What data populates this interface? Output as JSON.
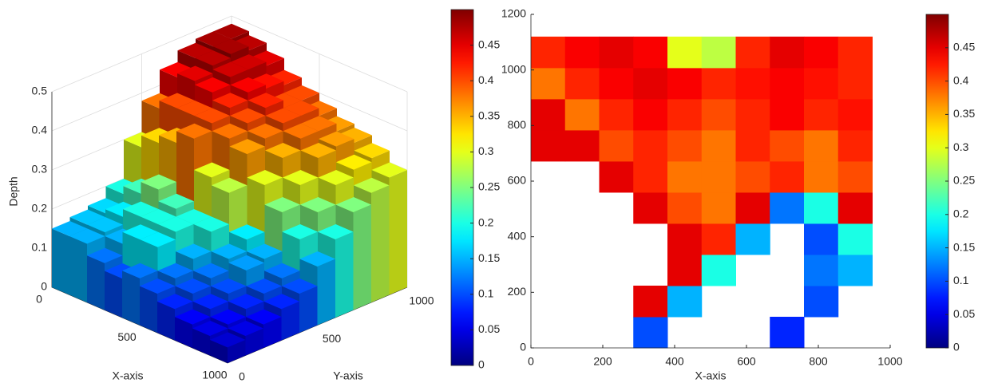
{
  "chart_data": [
    {
      "type": "surface3d",
      "xlabel": "X-axis",
      "ylabel": "Y-axis",
      "zlabel": "Depth",
      "colormap": "jet",
      "xlim": [
        0,
        1000
      ],
      "ylim": [
        0,
        1000
      ],
      "zlim": [
        0,
        0.5
      ],
      "clim": [
        0,
        0.5
      ],
      "xticks": [
        0,
        500,
        1000
      ],
      "yticks": [
        0,
        500,
        1000
      ],
      "zticks": [
        0,
        0.1,
        0.2,
        0.3,
        0.4,
        0.5
      ],
      "cticks": [
        0,
        0.05,
        0.1,
        0.15,
        0.2,
        0.25,
        0.3,
        0.35,
        0.4,
        0.45
      ],
      "grid": true,
      "xbins": [
        0,
        100,
        200,
        300,
        400,
        500,
        600,
        700,
        800,
        900,
        1000
      ],
      "ybins": [
        0,
        100,
        200,
        300,
        400,
        500,
        600,
        700,
        800,
        900,
        1000
      ],
      "z": [
        [
          0.15,
          0.16,
          0.17,
          0.2,
          0.3,
          0.38,
          0.44,
          0.47,
          0.48,
          0.48
        ],
        [
          0.15,
          0.16,
          0.18,
          0.22,
          0.33,
          0.4,
          0.45,
          0.47,
          0.48,
          0.47
        ],
        [
          0.12,
          0.15,
          0.2,
          0.25,
          0.35,
          0.4,
          0.44,
          0.46,
          0.46,
          0.45
        ],
        [
          0.1,
          0.18,
          0.2,
          0.22,
          0.38,
          0.4,
          0.42,
          0.44,
          0.43,
          0.42
        ],
        [
          0.12,
          0.18,
          0.2,
          0.2,
          0.3,
          0.38,
          0.4,
          0.42,
          0.4,
          0.4
        ],
        [
          0.1,
          0.12,
          0.15,
          0.2,
          0.28,
          0.36,
          0.38,
          0.4,
          0.4,
          0.38
        ],
        [
          0.08,
          0.1,
          0.12,
          0.15,
          0.18,
          0.3,
          0.35,
          0.38,
          0.38,
          0.36
        ],
        [
          0.06,
          0.08,
          0.1,
          0.14,
          0.15,
          0.25,
          0.3,
          0.35,
          0.36,
          0.35
        ],
        [
          0.05,
          0.06,
          0.08,
          0.1,
          0.12,
          0.2,
          0.25,
          0.3,
          0.32,
          0.33
        ],
        [
          0.04,
          0.05,
          0.06,
          0.08,
          0.1,
          0.15,
          0.2,
          0.25,
          0.28,
          0.3
        ]
      ]
    },
    {
      "type": "heatmap",
      "xlabel": "X-axis",
      "colormap": "jet",
      "xlim": [
        0,
        1000
      ],
      "ylim": [
        0,
        1200
      ],
      "clim": [
        0,
        0.5
      ],
      "xticks": [
        0,
        200,
        400,
        600,
        800,
        1000
      ],
      "yticks": [
        0,
        200,
        400,
        600,
        800,
        1000,
        1200
      ],
      "cticks": [
        0,
        0.05,
        0.1,
        0.15,
        0.2,
        0.25,
        0.3,
        0.35,
        0.4,
        0.45
      ],
      "xbins": [
        0,
        95,
        190,
        285,
        380,
        475,
        570,
        665,
        760,
        855,
        950
      ],
      "ybins": [
        0,
        112,
        224,
        336,
        448,
        560,
        672,
        784,
        896,
        1008,
        1120
      ],
      "z": [
        [
          null,
          null,
          null,
          0.1,
          null,
          null,
          null,
          0.08,
          null,
          null
        ],
        [
          null,
          null,
          null,
          0.45,
          0.15,
          null,
          null,
          null,
          0.1,
          null
        ],
        [
          null,
          null,
          null,
          null,
          0.45,
          0.2,
          null,
          null,
          0.12,
          0.15
        ],
        [
          null,
          null,
          null,
          null,
          0.45,
          0.42,
          0.15,
          null,
          0.1,
          0.2
        ],
        [
          null,
          null,
          null,
          0.45,
          0.4,
          0.38,
          0.45,
          0.12,
          0.2,
          0.45
        ],
        [
          null,
          null,
          0.45,
          0.42,
          0.38,
          0.38,
          0.4,
          0.42,
          0.38,
          0.4
        ],
        [
          0.45,
          0.45,
          0.4,
          0.42,
          0.4,
          0.38,
          0.42,
          0.4,
          0.38,
          0.42
        ],
        [
          0.45,
          0.38,
          0.42,
          0.44,
          0.42,
          0.4,
          0.42,
          0.44,
          0.42,
          0.43
        ],
        [
          0.38,
          0.42,
          0.44,
          0.45,
          0.44,
          0.42,
          0.43,
          0.44,
          0.43,
          0.42
        ],
        [
          0.42,
          0.44,
          0.45,
          0.44,
          0.3,
          0.28,
          0.42,
          0.45,
          0.44,
          0.42
        ]
      ]
    }
  ]
}
